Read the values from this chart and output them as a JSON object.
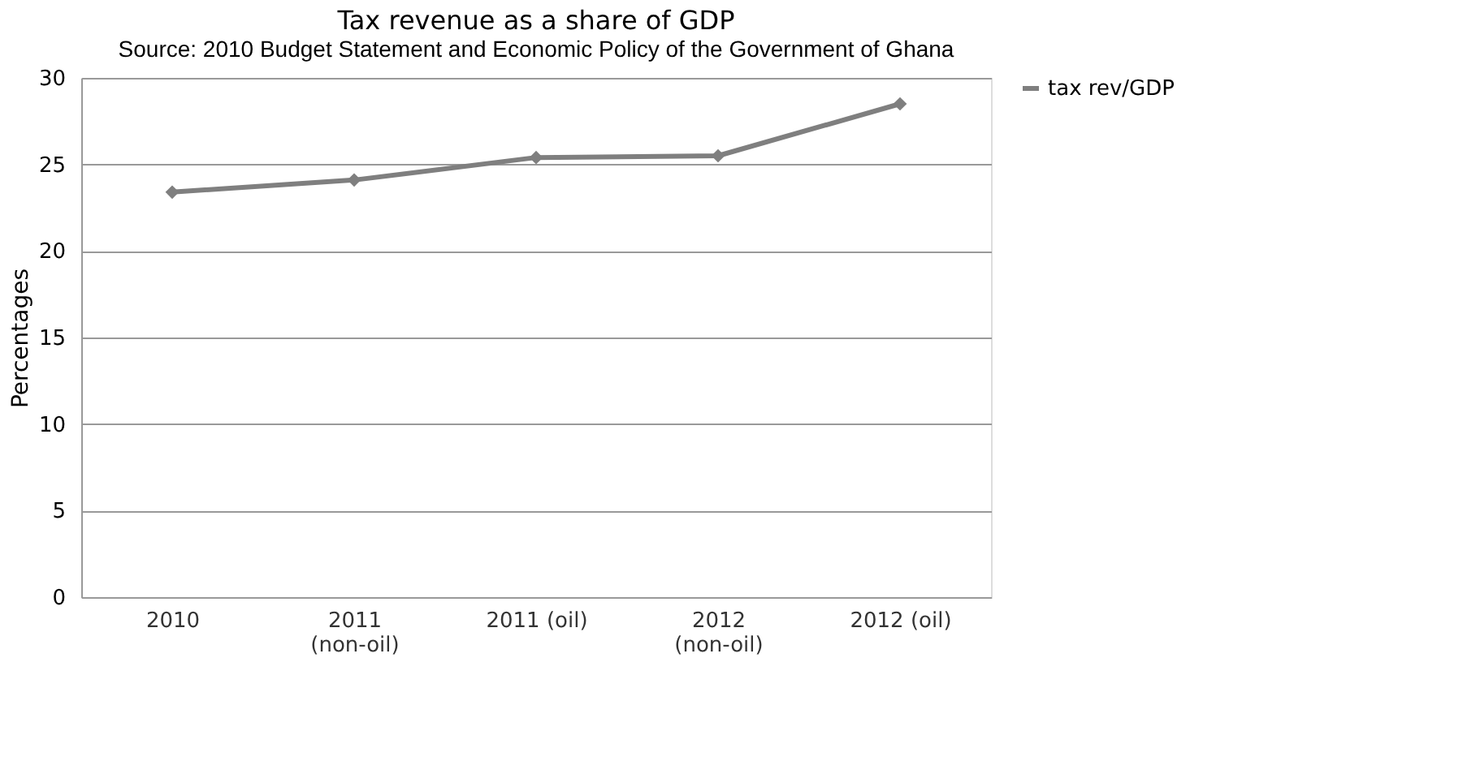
{
  "chart_data": {
    "type": "line",
    "title": "Tax revenue as a share of GDP",
    "ylabel": "Percentages",
    "annotations": [
      "Source: 2010 Budget Statement and Economic Policy of the Government of Ghana"
    ],
    "categories": [
      "2010",
      "2011 (non-oil)",
      "2011 (oil)",
      "2012 (non-oil)",
      "2012 (oil)"
    ],
    "series": [
      {
        "name": "tax rev/GDP",
        "color": "#7f7f7f",
        "values": [
          23.4,
          24.1,
          25.4,
          25.5,
          28.5
        ]
      }
    ],
    "ylim": [
      0,
      30
    ],
    "yticks": [
      0,
      5,
      10,
      15,
      20,
      25,
      30
    ],
    "grid": "y",
    "legend": "right",
    "marker": "diamond",
    "line_style": "solid"
  }
}
